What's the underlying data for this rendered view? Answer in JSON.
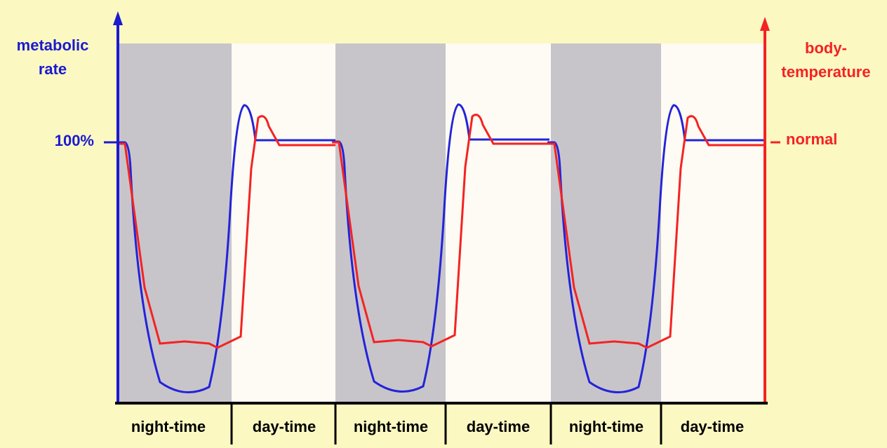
{
  "left_axis": {
    "label_lines": [
      "metabolic",
      "rate"
    ],
    "mark": "100%"
  },
  "right_axis": {
    "label_lines": [
      "body-",
      "temperature"
    ],
    "mark": "normal"
  },
  "periods": [
    "night-time",
    "day-time",
    "night-time",
    "day-time",
    "night-time",
    "day-time"
  ]
}
